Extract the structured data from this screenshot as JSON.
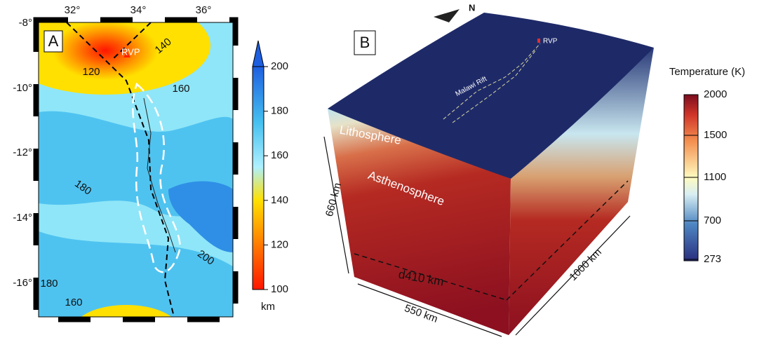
{
  "panel_a": {
    "label": "A",
    "lon_labels": [
      "32°",
      "34°",
      "36°"
    ],
    "lat_labels": [
      "-8°",
      "-10°",
      "-12°",
      "-14°",
      "-16°"
    ],
    "contour_labels": [
      "140",
      "120",
      "160",
      "180",
      "200",
      "180",
      "160"
    ],
    "site_label": "RVP",
    "colorbar": {
      "ticks": [
        100,
        120,
        140,
        160,
        180,
        200
      ],
      "unit": "km"
    }
  },
  "panel_b": {
    "label": "B",
    "north": "N",
    "site_label": "RVP",
    "rift_label": "Malawi Rift",
    "layer_labels": [
      "Lithosphere",
      "Asthenosphere",
      "d410 km"
    ],
    "dimension_labels": [
      "660 km",
      "550 km",
      "1000 km"
    ],
    "colorbar": {
      "title": "Temperature (K)",
      "ticks": [
        2000,
        1500,
        1100,
        700,
        273
      ]
    }
  }
}
